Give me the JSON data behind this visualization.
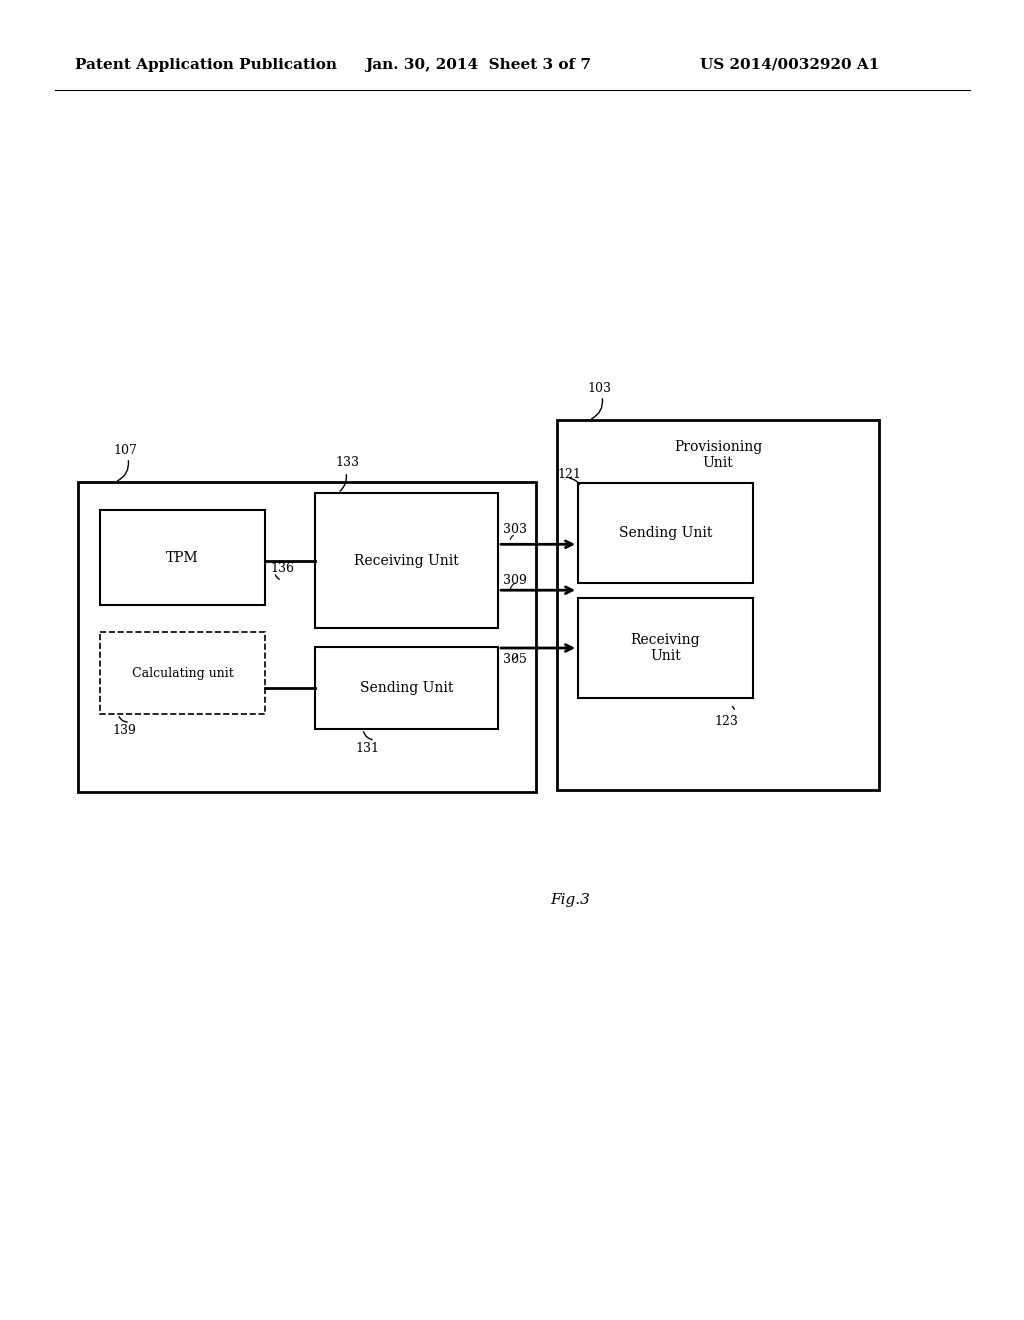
{
  "bg_color": "#ffffff",
  "header_left": "Patent Application Publication",
  "header_mid": "Jan. 30, 2014  Sheet 3 of 7",
  "header_right": "US 2014/0032920 A1",
  "fig_label": "Fig.3",
  "font_size_header": 11,
  "font_size_box": 10,
  "font_size_label": 9,
  "font_size_figlabel": 11
}
